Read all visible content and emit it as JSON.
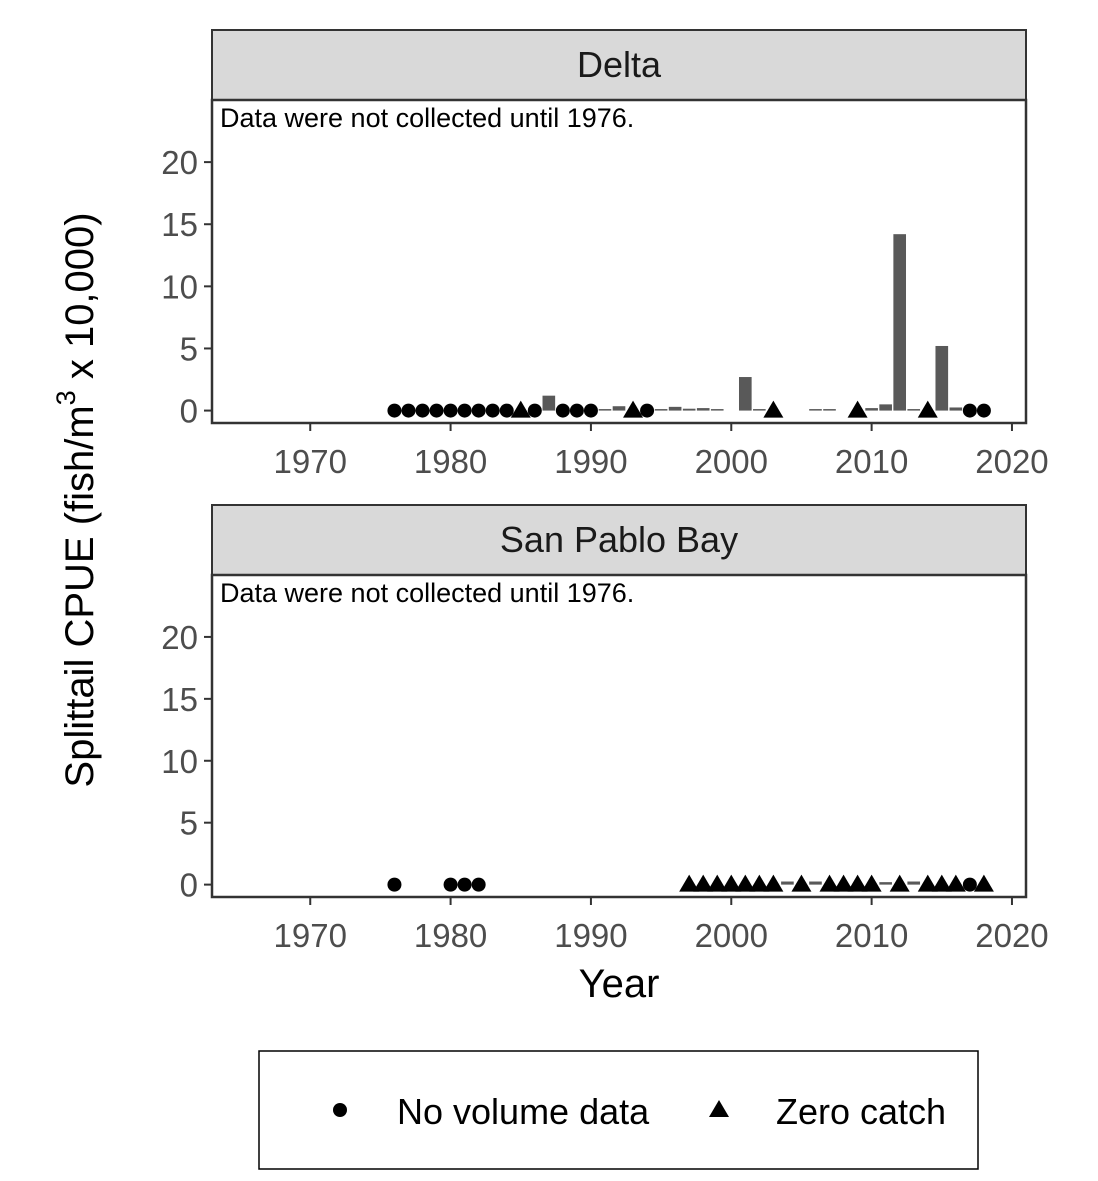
{
  "chart_data": {
    "type": "bar",
    "xlabel": "Year",
    "ylabel": "Splittail CPUE (fish/m",
    "ylabel_sup": "3",
    "ylabel_suffix": " x 10,000)",
    "xlim": [
      1963,
      2021
    ],
    "ylim": [
      -1,
      25
    ],
    "x_ticks": [
      1970,
      1980,
      1990,
      2000,
      2010,
      2020
    ],
    "y_ticks": [
      0,
      5,
      10,
      15,
      20
    ],
    "grid": false,
    "legend_position": "bottom",
    "legend": [
      {
        "label": "No volume data",
        "shape": "circle"
      },
      {
        "label": "Zero catch",
        "shape": "triangle"
      }
    ],
    "panels": [
      {
        "title": "Delta",
        "note": "Data were not collected until 1976.",
        "bars": [
          {
            "x": 1986,
            "y": 0.06
          },
          {
            "x": 1987,
            "y": 1.2
          },
          {
            "x": 1991,
            "y": 0.12
          },
          {
            "x": 1992,
            "y": 0.35
          },
          {
            "x": 1995,
            "y": 0.05
          },
          {
            "x": 1996,
            "y": 0.3
          },
          {
            "x": 1997,
            "y": 0.15
          },
          {
            "x": 1998,
            "y": 0.2
          },
          {
            "x": 1999,
            "y": 0.12
          },
          {
            "x": 2001,
            "y": 2.7
          },
          {
            "x": 2002,
            "y": 0.05
          },
          {
            "x": 2006,
            "y": 0.05
          },
          {
            "x": 2007,
            "y": 0.05
          },
          {
            "x": 2010,
            "y": 0.2
          },
          {
            "x": 2011,
            "y": 0.5
          },
          {
            "x": 2012,
            "y": 14.2
          },
          {
            "x": 2013,
            "y": 0.05
          },
          {
            "x": 2015,
            "y": 5.2
          },
          {
            "x": 2016,
            "y": 0.25
          }
        ],
        "no_volume_years": [
          1976,
          1977,
          1978,
          1979,
          1980,
          1981,
          1982,
          1983,
          1984,
          1986,
          1988,
          1989,
          1990,
          1994,
          2017,
          2018
        ],
        "zero_catch_years": [
          1985,
          1993,
          2003,
          2009,
          2014
        ]
      },
      {
        "title": "San Pablo Bay",
        "note": "Data were not collected until 1976.",
        "bars": [
          {
            "x": 2004,
            "y": 0.25
          },
          {
            "x": 2006,
            "y": 0.25
          },
          {
            "x": 2011,
            "y": 0.2
          },
          {
            "x": 2013,
            "y": 0.25
          }
        ],
        "no_volume_years": [
          1976,
          1980,
          1981,
          1982,
          2017
        ],
        "zero_catch_years": [
          1997,
          1998,
          1999,
          2000,
          2001,
          2002,
          2003,
          2005,
          2007,
          2008,
          2009,
          2010,
          2012,
          2014,
          2015,
          2016,
          2018
        ]
      }
    ]
  }
}
